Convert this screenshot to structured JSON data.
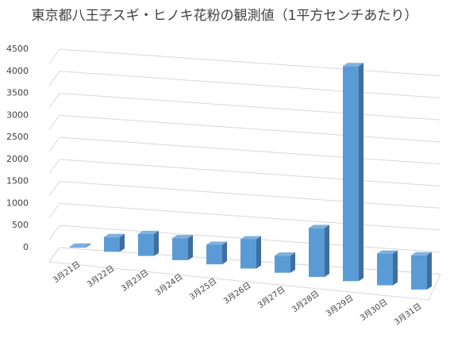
{
  "chart_data": {
    "type": "bar3d",
    "title": "東京都八王子スギ・ヒノキ花粉の観測値（1平方センチあたり）",
    "categories": [
      "3月21日",
      "3月22日",
      "3月23日",
      "3月24日",
      "3月25日",
      "3月26日",
      "3月27日",
      "3月28日",
      "3月29日",
      "3月30日",
      "3月31日"
    ],
    "values": [
      20,
      300,
      450,
      450,
      400,
      600,
      350,
      1000,
      4400,
      650,
      700
    ],
    "color": "#5b9bd5",
    "ylim": [
      0,
      4500
    ],
    "yticks": [
      0,
      500,
      1000,
      1500,
      2000,
      2500,
      3000,
      3500,
      4000,
      4500
    ],
    "grid": true
  }
}
